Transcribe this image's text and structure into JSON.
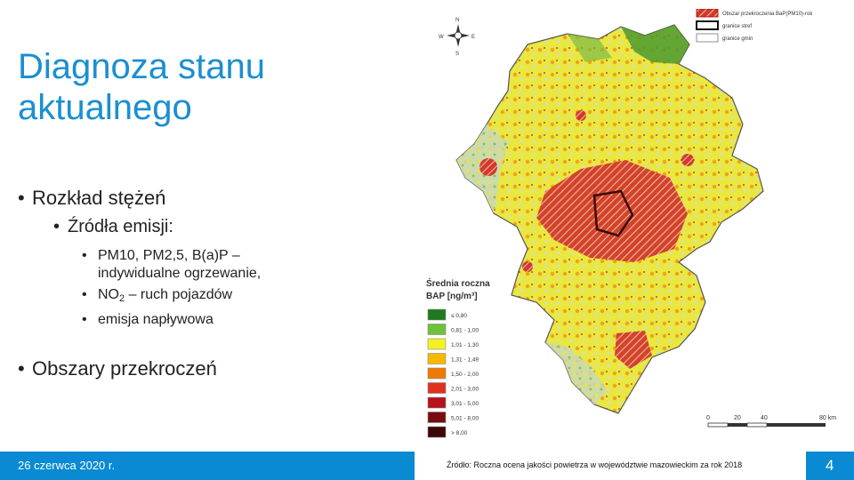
{
  "slide": {
    "title": "Diagnoza stanu\naktualnego",
    "bullets": {
      "b1": "Rozkład stężeń",
      "b1_1": "Źródła emisji:",
      "b1_1_1a": "PM10, PM2,5, B(a)P –",
      "b1_1_1b": "indywidualne ogrzewanie,",
      "b1_1_2_pre": "NO",
      "b1_1_2_sub": "2",
      "b1_1_2_post": " – ruch pojazdów",
      "b1_1_3": "emisja napływowa",
      "b2": "Obszary przekroczeń"
    },
    "bullet_symbol": "•"
  },
  "map": {
    "compass": {
      "n": "N",
      "s": "S",
      "e": "E",
      "w": "W"
    },
    "top_legend": [
      {
        "label": "Obszar przekroczenia BaP(PM10)-rok",
        "style": "hatch-red"
      },
      {
        "label": "granice stref",
        "style": "thick-outline"
      },
      {
        "label": "granice gmin",
        "style": "thin-outline"
      }
    ],
    "legend_title_1": "Średnia roczna",
    "legend_title_2": "BAP [ng/m³]",
    "legend": [
      {
        "label": "≤ 0,80",
        "color": "#1f7a1f"
      },
      {
        "label": "0,81 - 1,00",
        "color": "#6cc23a"
      },
      {
        "label": "1,01 - 1,30",
        "color": "#f2f226"
      },
      {
        "label": "1,31 - 1,49",
        "color": "#f6b800"
      },
      {
        "label": "1,50 - 2,00",
        "color": "#f07a00"
      },
      {
        "label": "2,01 - 3,00",
        "color": "#e0301e"
      },
      {
        "label": "3,01 - 5,00",
        "color": "#b5121b"
      },
      {
        "label": "5,01 - 8,00",
        "color": "#7a0c10"
      },
      {
        "label": "> 8,00",
        "color": "#3d0608"
      }
    ],
    "scale_ticks": [
      "0",
      "20",
      "40",
      "80 km"
    ]
  },
  "footer": {
    "date": "26 czerwca 2020 r.",
    "source": "Źródło: Roczna ocena jakości powietrza w województwie mazowieckim za rok 2018",
    "page": "4"
  },
  "colors": {
    "title": "#1b8fd0",
    "footer_bg": "#0a8ad2"
  }
}
